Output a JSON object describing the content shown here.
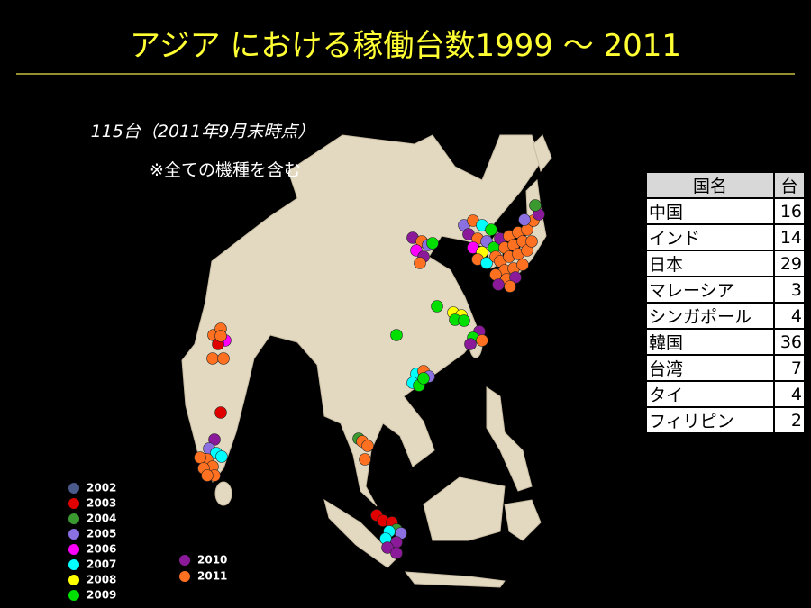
{
  "title": "アジア における稼働台数1999 ～ 2011",
  "note": {
    "count": "115台（2011年9月末時点）",
    "scope": "※全ての機種を含む"
  },
  "table": {
    "header": [
      "国名",
      "台"
    ],
    "rows": [
      [
        "中国",
        16
      ],
      [
        "インド",
        14
      ],
      [
        "日本",
        29
      ],
      [
        "マレーシア",
        3
      ],
      [
        "シンガポール",
        4
      ],
      [
        "韓国",
        36
      ],
      [
        "台湾",
        7
      ],
      [
        "タイ",
        4
      ],
      [
        "フィリピン",
        2
      ]
    ]
  },
  "legend": [
    {
      "label": "2002",
      "color": "#4a5a8a"
    },
    {
      "label": "2003",
      "color": "#e00000"
    },
    {
      "label": "2004",
      "color": "#3a9a30"
    },
    {
      "label": "2005",
      "color": "#8a70e0"
    },
    {
      "label": "2006",
      "color": "#ff00ff"
    },
    {
      "label": "2007",
      "color": "#00ffff"
    },
    {
      "label": "2008",
      "color": "#ffff00"
    },
    {
      "label": "2009",
      "color": "#00e000"
    },
    {
      "label": "2010",
      "color": "#8a1a9a"
    },
    {
      "label": "2011",
      "color": "#ff7020"
    }
  ]
}
